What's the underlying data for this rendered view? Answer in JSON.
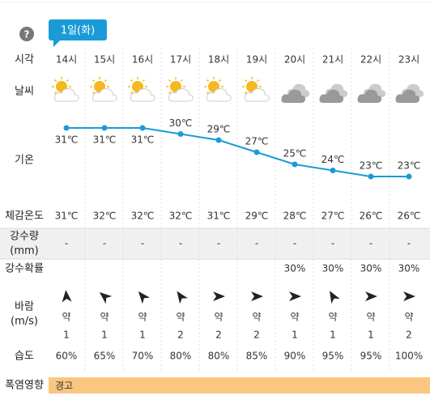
{
  "help": "?",
  "date_badge": "1일(화)",
  "row_labels": {
    "time": "시각",
    "weather": "날씨",
    "temperature": "기온",
    "feels_like": "체감온도",
    "precip_amount": "강수량",
    "precip_unit": "(mm)",
    "precip_prob": "강수확률",
    "wind": "바람",
    "wind_unit": "(m/s)",
    "humidity": "습도",
    "heatwave": "폭염영향"
  },
  "hours": [
    "14시",
    "15시",
    "16시",
    "17시",
    "18시",
    "19시",
    "20시",
    "21시",
    "22시",
    "23시"
  ],
  "temperature": {
    "values": [
      31,
      31,
      31,
      30,
      29,
      27,
      25,
      24,
      23,
      23
    ],
    "value_labels": [
      "31℃",
      "31℃",
      "31℃",
      "30℃",
      "29℃",
      "27℃",
      "25℃",
      "24℃",
      "23℃",
      "23℃"
    ]
  },
  "feels_like": [
    "31℃",
    "32℃",
    "32℃",
    "32℃",
    "31℃",
    "29℃",
    "28℃",
    "27℃",
    "26℃",
    "26℃"
  ],
  "precip_amount": [
    "-",
    "-",
    "-",
    "-",
    "-",
    "-",
    "-",
    "-",
    "-",
    "-"
  ],
  "precip_prob": [
    null,
    null,
    null,
    null,
    null,
    null,
    "30%",
    "30%",
    "30%",
    "30%"
  ],
  "wind_strength": [
    "약",
    "약",
    "약",
    "약",
    "약",
    "약",
    "약",
    "약",
    "약",
    "약"
  ],
  "wind_speed": [
    1,
    1,
    1,
    2,
    2,
    2,
    1,
    1,
    1,
    2
  ],
  "humidity": [
    "60%",
    "65%",
    "70%",
    "80%",
    "80%",
    "85%",
    "90%",
    "95%",
    "95%",
    "100%"
  ],
  "heatwave": "경고"
}
